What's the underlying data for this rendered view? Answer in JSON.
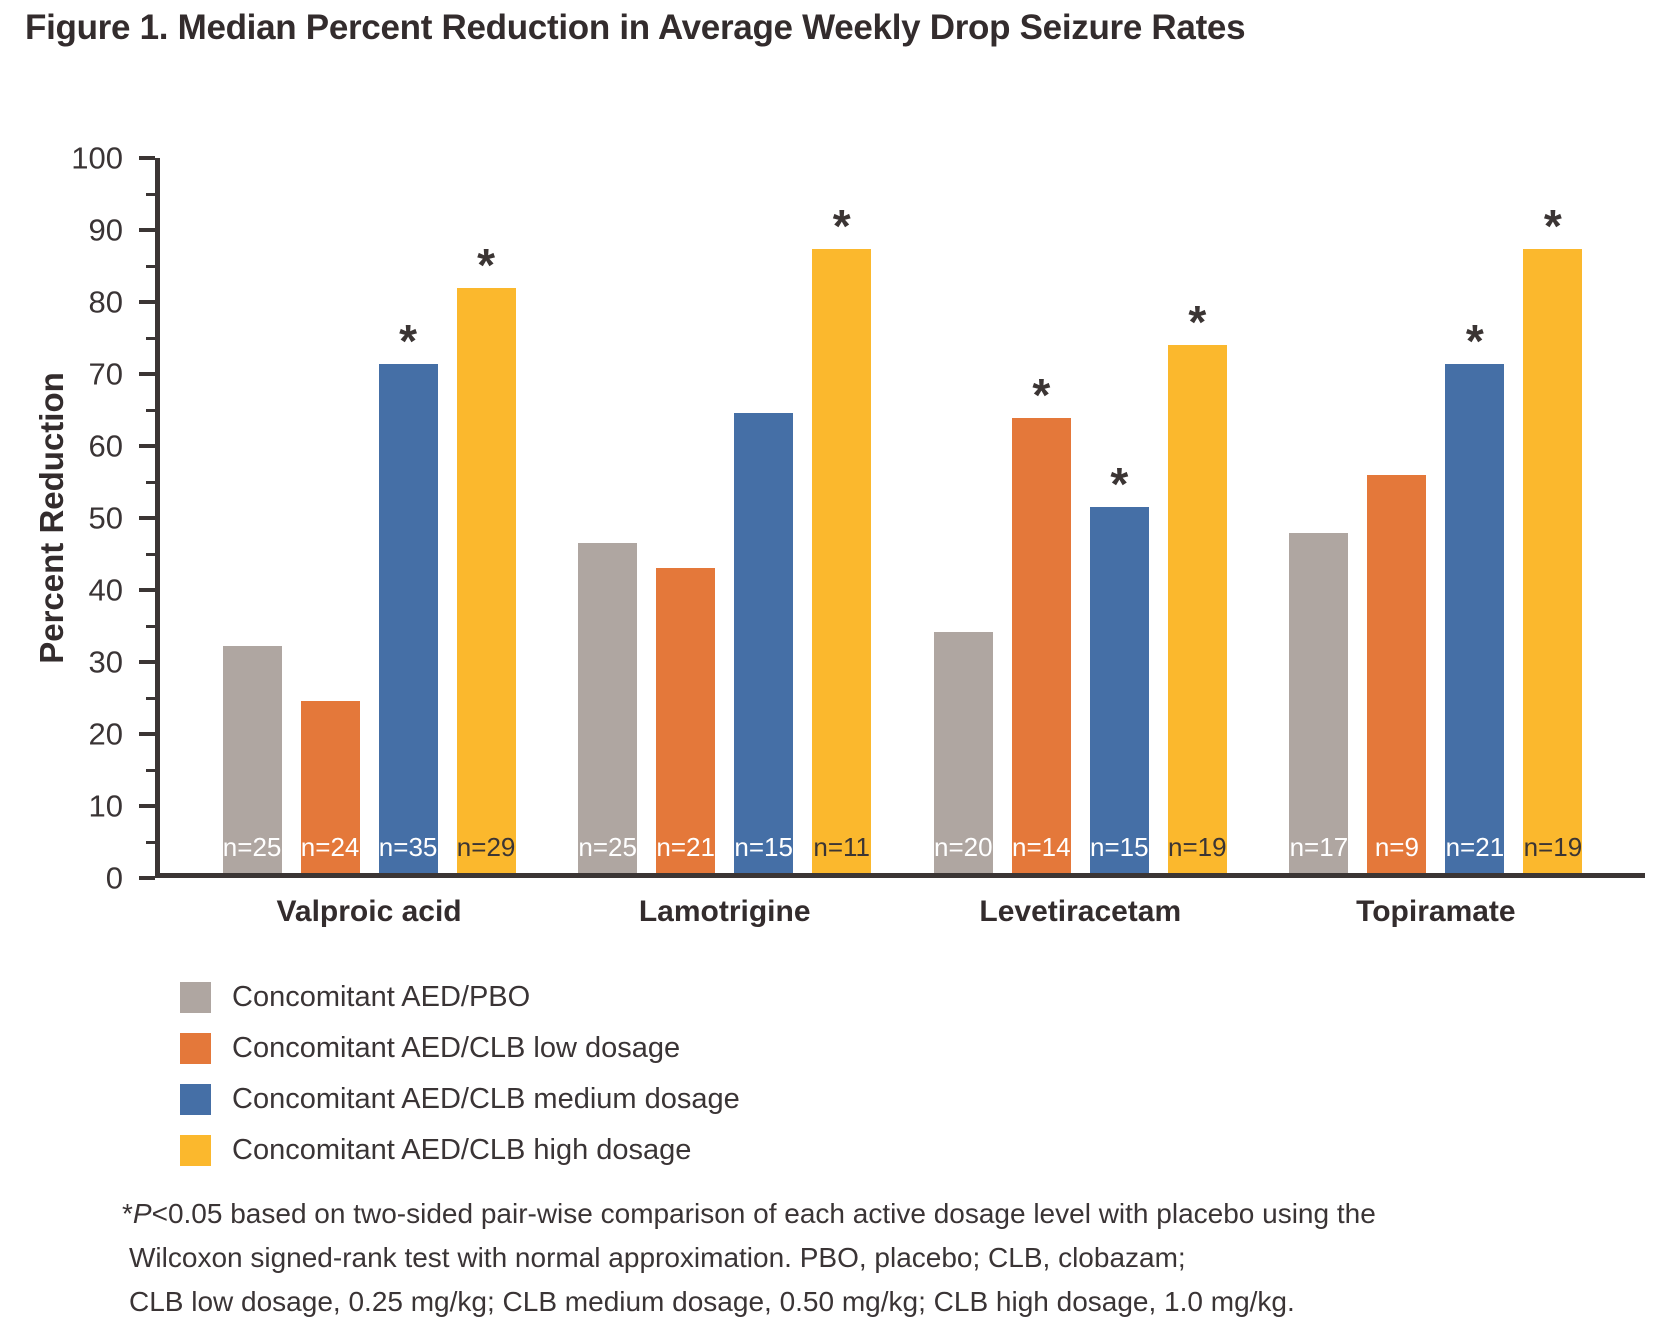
{
  "title": "Figure 1. Median Percent Reduction in Average Weekly Drop Seizure Rates",
  "chart_data": {
    "type": "bar",
    "title": "Figure 1. Median Percent Reduction in Average Weekly Drop Seizure Rates",
    "xlabel": "",
    "ylabel": "Percent Reduction",
    "ylim": [
      0,
      100
    ],
    "major_step": 10,
    "minor_step": 5,
    "grid": false,
    "legend_position": "bottom-left",
    "sig_marker": "*",
    "n_prefix": "n=",
    "categories": [
      "Valproic acid",
      "Lamotrigine",
      "Levetiracetam",
      "Topiramate"
    ],
    "series": [
      {
        "name": "Concomitant AED/PBO",
        "color": "#afa6a1",
        "values": [
          31.7,
          46.2,
          33.7,
          47.6
        ],
        "n": [
          25,
          25,
          20,
          17
        ],
        "significant": [
          false,
          false,
          false,
          false
        ],
        "n_label_color": "#ffffff"
      },
      {
        "name": "Concomitant AED/CLB low dosage",
        "color": "#e4783a",
        "values": [
          24.0,
          42.7,
          63.7,
          55.7
        ],
        "n": [
          24,
          21,
          14,
          9
        ],
        "significant": [
          false,
          false,
          true,
          false
        ],
        "n_label_color": "#ffffff"
      },
      {
        "name": "Concomitant AED/CLB medium dosage",
        "color": "#456fa6",
        "values": [
          71.2,
          64.3,
          51.2,
          71.2
        ],
        "n": [
          35,
          15,
          15,
          21
        ],
        "significant": [
          true,
          false,
          true,
          true
        ],
        "n_label_color": "#ffffff"
      },
      {
        "name": "Concomitant AED/CLB high dosage",
        "color": "#fbb82d",
        "values": [
          81.8,
          87.3,
          73.8,
          87.3
        ],
        "n": [
          29,
          11,
          19,
          19
        ],
        "significant": [
          true,
          true,
          true,
          true
        ],
        "n_label_color": "#3b3534"
      }
    ]
  },
  "footnote": {
    "line1_star": "*",
    "line1_italic": "P",
    "line1_rest": "<0.05 based on two-sided pair-wise comparison of each active dosage level with placebo using the",
    "line2": "Wilcoxon signed-rank test with normal approximation. PBO, placebo; CLB, clobazam;",
    "line3": "CLB low dosage, 0.25 mg/kg; CLB medium dosage, 0.50 mg/kg; CLB high dosage, 1.0 mg/kg."
  }
}
